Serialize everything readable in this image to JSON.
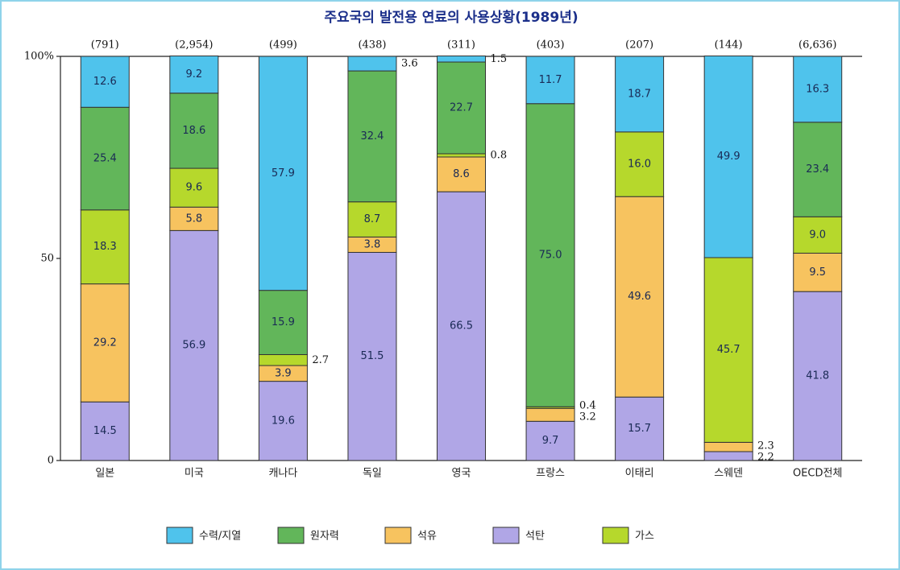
{
  "chart_data": {
    "type": "stacked_bar",
    "title": "주요국의 발전용 연료의 사용상황(1989년)",
    "categories": [
      "일본",
      "미국",
      "캐나다",
      "독일",
      "영국",
      "프랑스",
      "이태리",
      "스웨덴",
      "OECD전체"
    ],
    "category_totals": [
      "(791)",
      "(2,954)",
      "(499)",
      "(438)",
      "(311)",
      "(403)",
      "(207)",
      "(144)",
      "(6,636)"
    ],
    "ylim": [
      0,
      100
    ],
    "yticks": [
      0,
      50,
      {
        "value": 100,
        "label": "100%"
      }
    ],
    "grid": false,
    "series": [
      {
        "name": "수력/지열",
        "color": "#4fc3ec",
        "values": [
          12.6,
          9.2,
          57.9,
          3.6,
          1.5,
          11.7,
          18.7,
          49.9,
          16.3
        ],
        "value_labels": [
          "12.6",
          "9.2",
          "57.9",
          "3.6",
          "1.5",
          "11.7",
          "18.7",
          "49.9",
          "16.3"
        ]
      },
      {
        "name": "원자력",
        "color": "#62b65a",
        "values": [
          25.4,
          18.6,
          15.9,
          32.4,
          22.7,
          75.0,
          null,
          null,
          23.4
        ],
        "value_labels": [
          "25.4",
          "18.6",
          "15.9",
          "32.4",
          "22.7",
          "75.0",
          null,
          null,
          "23.4"
        ]
      },
      {
        "name": "석유",
        "color": "#f7c35f",
        "values": [
          29.2,
          5.8,
          3.9,
          3.8,
          8.6,
          3.2,
          49.6,
          2.3,
          9.5
        ],
        "value_labels": [
          "29.2",
          "5.8",
          "3.9",
          "3.8",
          "8.6",
          "3.2",
          "49.6",
          "2.3",
          "9.5"
        ]
      },
      {
        "name": "석탄",
        "color": "#b0a6e6",
        "values": [
          14.5,
          56.9,
          19.6,
          51.5,
          66.5,
          9.7,
          15.7,
          2.2,
          41.8
        ],
        "value_labels": [
          "14.5",
          "56.9",
          "19.6",
          "51.5",
          "66.5",
          "9.7",
          "15.7",
          "2.2",
          "41.8"
        ]
      },
      {
        "name": "가스",
        "color": "#b6d82c",
        "values": [
          18.3,
          9.6,
          2.7,
          8.7,
          0.8,
          0.4,
          16.0,
          45.7,
          9.0
        ],
        "value_labels": [
          "18.3",
          "9.6",
          "2.7",
          "8.7",
          "0.8",
          "0.4",
          "16.0",
          "45.7",
          "9.0"
        ]
      }
    ]
  }
}
